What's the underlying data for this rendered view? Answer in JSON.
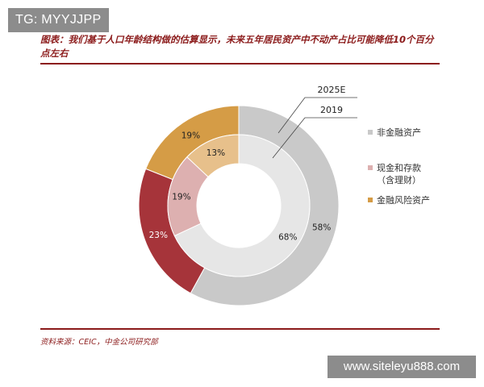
{
  "watermark_top": "TG: MYYJJPP",
  "title": "图表：我们基于人口年龄结构做的估算显示，未来五年居民资产中不动产占比可能降低10个百分点左右",
  "source": "资料来源：CEIC，中金公司研究部",
  "watermark_bottom": "www.siteleyu888.com",
  "chart_data": {
    "type": "pie",
    "categories": [
      "非金融资产",
      "现金和存款（含理财）",
      "金融风险资产"
    ],
    "series": [
      {
        "name": "2025E",
        "values": [
          58,
          23,
          19
        ]
      },
      {
        "name": "2019",
        "values": [
          68,
          19,
          13
        ]
      }
    ],
    "data_labels": {
      "2025E": [
        "58%",
        "23%",
        "19%"
      ],
      "2019": [
        "68%",
        "19%",
        "13%"
      ]
    },
    "legend": [
      {
        "label": "非金融资产",
        "color": "#c9c9c9"
      },
      {
        "label": "现金和存款",
        "label2": "（含理财）",
        "color": "#ddb0b0"
      },
      {
        "label": "金融风险资产",
        "color": "#d59c46"
      }
    ],
    "colors": {
      "outer": [
        "#c9c9c9",
        "#a6343a",
        "#d59c46"
      ],
      "inner": [
        "#e6e6e6",
        "#ddb0b0",
        "#e7c08b"
      ]
    },
    "legend_position": "right"
  }
}
